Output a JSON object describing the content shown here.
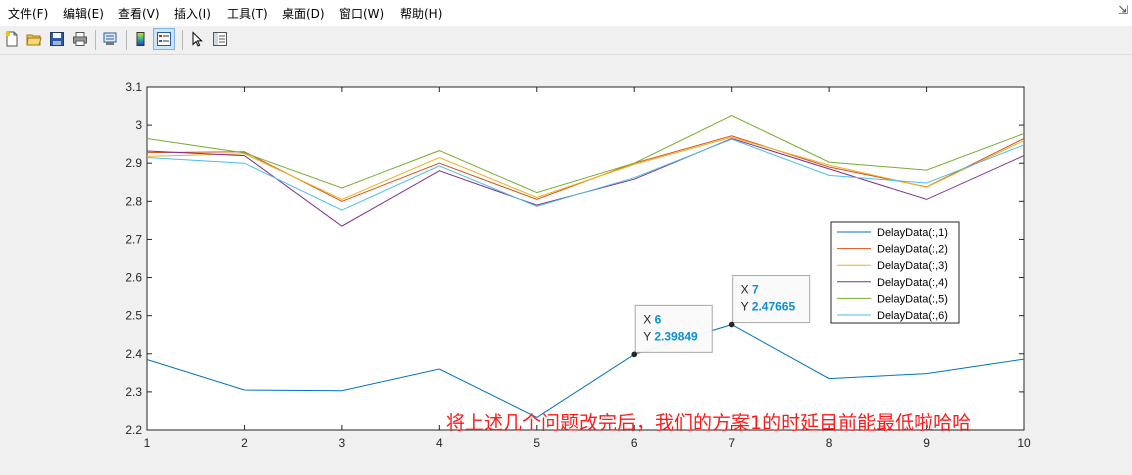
{
  "menubar": {
    "items": [
      "文件(F)",
      "编辑(E)",
      "查看(V)",
      "插入(I)",
      "工具(T)",
      "桌面(D)",
      "窗口(W)",
      "帮助(H)"
    ]
  },
  "toolbar": {
    "buttons": [
      "new-file-icon",
      "open-folder-icon",
      "save-icon",
      "print-icon",
      "print-preview-icon",
      "colorbar-icon",
      "legend-icon",
      "pointer-icon",
      "property-inspector-icon"
    ]
  },
  "caption": "将上述几个问题改完后，我们的方案1的时延目前能最低啦哈哈",
  "chart_data": {
    "type": "line",
    "x": [
      1,
      2,
      3,
      4,
      5,
      6,
      7,
      8,
      9,
      10
    ],
    "xlim": [
      1,
      10
    ],
    "ylim": [
      2.2,
      3.1
    ],
    "xticks": [
      "1",
      "2",
      "3",
      "4",
      "5",
      "6",
      "7",
      "8",
      "9",
      "10"
    ],
    "yticks": [
      "2.2",
      "2.3",
      "2.4",
      "2.5",
      "2.6",
      "2.7",
      "2.8",
      "2.9",
      "3",
      "3.1"
    ],
    "grid": false,
    "legend_position": "right-middle",
    "series": [
      {
        "name": "DelayData(:,1)",
        "color": "#0072BD",
        "values": [
          2.385,
          2.305,
          2.303,
          2.36,
          2.233,
          2.39849,
          2.47665,
          2.335,
          2.348,
          2.386
        ]
      },
      {
        "name": "DelayData(:,2)",
        "color": "#D95319",
        "values": [
          2.928,
          2.93,
          2.8,
          2.9,
          2.805,
          2.9,
          2.972,
          2.89,
          2.838,
          2.965
        ]
      },
      {
        "name": "DelayData(:,3)",
        "color": "#EDB120",
        "values": [
          2.918,
          2.925,
          2.805,
          2.915,
          2.81,
          2.897,
          2.968,
          2.895,
          2.837,
          2.96
        ]
      },
      {
        "name": "DelayData(:,4)",
        "color": "#7E2F8E",
        "values": [
          2.932,
          2.92,
          2.735,
          2.88,
          2.79,
          2.858,
          2.965,
          2.885,
          2.805,
          2.92
        ]
      },
      {
        "name": "DelayData(:,5)",
        "color": "#77AC30",
        "values": [
          2.965,
          2.927,
          2.835,
          2.933,
          2.823,
          2.9,
          3.025,
          2.903,
          2.882,
          2.978
        ]
      },
      {
        "name": "DelayData(:,6)",
        "color": "#4DBEEE",
        "values": [
          2.915,
          2.9,
          2.777,
          2.893,
          2.787,
          2.862,
          2.963,
          2.868,
          2.848,
          2.948
        ]
      }
    ],
    "datatips": [
      {
        "x_label": "X",
        "x_value": "6",
        "y_label": "Y",
        "y_value": "2.39849",
        "x": 6,
        "y": 2.39849
      },
      {
        "x_label": "X",
        "x_value": "7",
        "y_label": "Y",
        "y_value": "2.47665",
        "x": 7,
        "y": 2.47665
      }
    ]
  }
}
